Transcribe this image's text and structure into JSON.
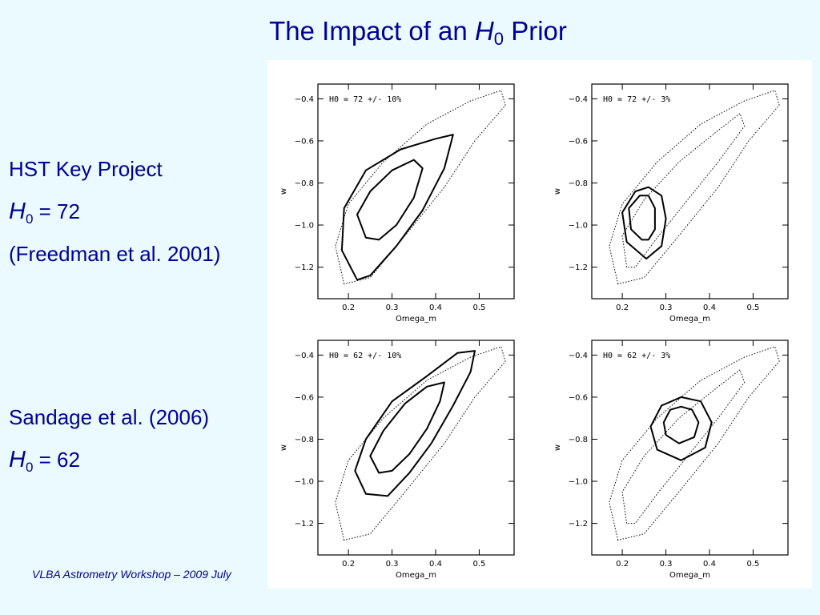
{
  "slide": {
    "title_prefix": "The Impact of an ",
    "title_var": "H",
    "title_sub": "0",
    "title_suffix": " Prior",
    "footer": "VLBA Astrometry Workshop – 2009 July"
  },
  "sidebar": {
    "block1": {
      "heading": "HST Key Project",
      "var": "H",
      "sub": "0",
      "value": " = 72",
      "citation": "(Freedman et al. 2001)"
    },
    "block2": {
      "heading": "Sandage et al. (2006)",
      "var": "H",
      "sub": "0",
      "value": " = 62"
    }
  },
  "chart_data": [
    {
      "type": "contour",
      "annotation": "H0 = 72 +/- 10%",
      "xlabel": "Omega_m",
      "ylabel": "w",
      "xlim": [
        0.13,
        0.58
      ],
      "ylim": [
        -1.35,
        -0.33
      ],
      "xticks": [
        "0.2",
        "0.3",
        "0.4",
        "0.5"
      ],
      "yticks": [
        "-0.4",
        "-0.6",
        "-0.8",
        "-1.0",
        "-1.2"
      ],
      "series": [
        {
          "style": "dotted",
          "points": [
            [
              0.19,
              -1.28
            ],
            [
              0.17,
              -1.1
            ],
            [
              0.2,
              -0.9
            ],
            [
              0.28,
              -0.7
            ],
            [
              0.38,
              -0.52
            ],
            [
              0.48,
              -0.41
            ],
            [
              0.55,
              -0.36
            ],
            [
              0.56,
              -0.43
            ],
            [
              0.49,
              -0.6
            ],
            [
              0.42,
              -0.82
            ],
            [
              0.33,
              -1.05
            ],
            [
              0.25,
              -1.25
            ],
            [
              0.19,
              -1.28
            ]
          ]
        },
        {
          "style": "solid",
          "points": [
            [
              0.22,
              -1.26
            ],
            [
              0.185,
              -1.12
            ],
            [
              0.19,
              -0.92
            ],
            [
              0.24,
              -0.74
            ],
            [
              0.32,
              -0.64
            ],
            [
              0.4,
              -0.59
            ],
            [
              0.44,
              -0.57
            ],
            [
              0.42,
              -0.73
            ],
            [
              0.37,
              -0.93
            ],
            [
              0.31,
              -1.1
            ],
            [
              0.25,
              -1.24
            ],
            [
              0.22,
              -1.26
            ]
          ]
        },
        {
          "style": "solid",
          "points": [
            [
              0.24,
              -1.06
            ],
            [
              0.22,
              -0.95
            ],
            [
              0.25,
              -0.84
            ],
            [
              0.3,
              -0.74
            ],
            [
              0.35,
              -0.69
            ],
            [
              0.37,
              -0.73
            ],
            [
              0.35,
              -0.87
            ],
            [
              0.31,
              -1.0
            ],
            [
              0.27,
              -1.07
            ],
            [
              0.24,
              -1.06
            ]
          ]
        }
      ]
    },
    {
      "type": "contour",
      "annotation": "H0 = 72 +/- 3%",
      "xlabel": "Omega_m",
      "ylabel": "w",
      "xlim": [
        0.13,
        0.58
      ],
      "ylim": [
        -1.35,
        -0.33
      ],
      "xticks": [
        "0.2",
        "0.3",
        "0.4",
        "0.5"
      ],
      "yticks": [
        "-0.4",
        "-0.6",
        "-0.8",
        "-1.0",
        "-1.2"
      ],
      "series": [
        {
          "style": "dotted",
          "points": [
            [
              0.19,
              -1.28
            ],
            [
              0.17,
              -1.1
            ],
            [
              0.2,
              -0.9
            ],
            [
              0.28,
              -0.7
            ],
            [
              0.38,
              -0.52
            ],
            [
              0.48,
              -0.41
            ],
            [
              0.55,
              -0.36
            ],
            [
              0.56,
              -0.43
            ],
            [
              0.49,
              -0.6
            ],
            [
              0.42,
              -0.82
            ],
            [
              0.33,
              -1.05
            ],
            [
              0.25,
              -1.25
            ],
            [
              0.19,
              -1.28
            ]
          ]
        },
        {
          "style": "dotted",
          "points": [
            [
              0.21,
              -1.2
            ],
            [
              0.2,
              -1.05
            ],
            [
              0.25,
              -0.88
            ],
            [
              0.33,
              -0.7
            ],
            [
              0.42,
              -0.55
            ],
            [
              0.47,
              -0.47
            ],
            [
              0.48,
              -0.53
            ],
            [
              0.42,
              -0.7
            ],
            [
              0.35,
              -0.88
            ],
            [
              0.28,
              -1.06
            ],
            [
              0.23,
              -1.2
            ],
            [
              0.21,
              -1.2
            ]
          ]
        },
        {
          "style": "solid",
          "points": [
            [
              0.255,
              -1.16
            ],
            [
              0.21,
              -1.08
            ],
            [
              0.2,
              -0.94
            ],
            [
              0.23,
              -0.84
            ],
            [
              0.26,
              -0.82
            ],
            [
              0.29,
              -0.86
            ],
            [
              0.3,
              -0.97
            ],
            [
              0.29,
              -1.1
            ],
            [
              0.255,
              -1.16
            ]
          ]
        },
        {
          "style": "solid",
          "points": [
            [
              0.245,
              -1.07
            ],
            [
              0.22,
              -1.02
            ],
            [
              0.215,
              -0.92
            ],
            [
              0.24,
              -0.86
            ],
            [
              0.26,
              -0.86
            ],
            [
              0.275,
              -0.92
            ],
            [
              0.275,
              -1.02
            ],
            [
              0.26,
              -1.07
            ],
            [
              0.245,
              -1.07
            ]
          ]
        }
      ]
    },
    {
      "type": "contour",
      "annotation": "H0 = 62 +/- 10%",
      "xlabel": "Omega_m",
      "ylabel": "w",
      "xlim": [
        0.13,
        0.58
      ],
      "ylim": [
        -1.35,
        -0.33
      ],
      "xticks": [
        "0.2",
        "0.3",
        "0.4",
        "0.5"
      ],
      "yticks": [
        "-0.4",
        "-0.6",
        "-0.8",
        "-1.0",
        "-1.2"
      ],
      "series": [
        {
          "style": "dotted",
          "points": [
            [
              0.19,
              -1.28
            ],
            [
              0.17,
              -1.1
            ],
            [
              0.2,
              -0.9
            ],
            [
              0.28,
              -0.7
            ],
            [
              0.38,
              -0.52
            ],
            [
              0.48,
              -0.41
            ],
            [
              0.55,
              -0.36
            ],
            [
              0.56,
              -0.43
            ],
            [
              0.49,
              -0.6
            ],
            [
              0.42,
              -0.82
            ],
            [
              0.33,
              -1.05
            ],
            [
              0.25,
              -1.25
            ],
            [
              0.19,
              -1.28
            ]
          ]
        },
        {
          "style": "solid",
          "points": [
            [
              0.24,
              -1.06
            ],
            [
              0.215,
              -0.95
            ],
            [
              0.24,
              -0.8
            ],
            [
              0.3,
              -0.62
            ],
            [
              0.38,
              -0.5
            ],
            [
              0.45,
              -0.39
            ],
            [
              0.49,
              -0.38
            ],
            [
              0.48,
              -0.48
            ],
            [
              0.44,
              -0.64
            ],
            [
              0.39,
              -0.82
            ],
            [
              0.34,
              -0.96
            ],
            [
              0.29,
              -1.07
            ],
            [
              0.24,
              -1.06
            ]
          ]
        },
        {
          "style": "solid",
          "points": [
            [
              0.27,
              -0.96
            ],
            [
              0.25,
              -0.88
            ],
            [
              0.28,
              -0.76
            ],
            [
              0.33,
              -0.63
            ],
            [
              0.38,
              -0.55
            ],
            [
              0.42,
              -0.53
            ],
            [
              0.41,
              -0.62
            ],
            [
              0.38,
              -0.75
            ],
            [
              0.34,
              -0.87
            ],
            [
              0.3,
              -0.95
            ],
            [
              0.27,
              -0.96
            ]
          ]
        }
      ]
    },
    {
      "type": "contour",
      "annotation": "H0 = 62 +/- 3%",
      "xlabel": "Omega_m",
      "ylabel": "w",
      "xlim": [
        0.13,
        0.58
      ],
      "ylim": [
        -1.35,
        -0.33
      ],
      "xticks": [
        "0.2",
        "0.3",
        "0.4",
        "0.5"
      ],
      "yticks": [
        "-0.4",
        "-0.6",
        "-0.8",
        "-1.0",
        "-1.2"
      ],
      "series": [
        {
          "style": "dotted",
          "points": [
            [
              0.19,
              -1.28
            ],
            [
              0.17,
              -1.1
            ],
            [
              0.2,
              -0.9
            ],
            [
              0.28,
              -0.7
            ],
            [
              0.38,
              -0.52
            ],
            [
              0.48,
              -0.41
            ],
            [
              0.55,
              -0.36
            ],
            [
              0.56,
              -0.43
            ],
            [
              0.49,
              -0.6
            ],
            [
              0.42,
              -0.82
            ],
            [
              0.33,
              -1.05
            ],
            [
              0.25,
              -1.25
            ],
            [
              0.19,
              -1.28
            ]
          ]
        },
        {
          "style": "dotted",
          "points": [
            [
              0.21,
              -1.2
            ],
            [
              0.2,
              -1.05
            ],
            [
              0.25,
              -0.88
            ],
            [
              0.33,
              -0.7
            ],
            [
              0.42,
              -0.55
            ],
            [
              0.47,
              -0.47
            ],
            [
              0.48,
              -0.53
            ],
            [
              0.42,
              -0.7
            ],
            [
              0.35,
              -0.88
            ],
            [
              0.28,
              -1.06
            ],
            [
              0.23,
              -1.2
            ],
            [
              0.21,
              -1.2
            ]
          ]
        },
        {
          "style": "solid",
          "points": [
            [
              0.335,
              -0.9
            ],
            [
              0.28,
              -0.85
            ],
            [
              0.265,
              -0.74
            ],
            [
              0.29,
              -0.64
            ],
            [
              0.335,
              -0.6
            ],
            [
              0.38,
              -0.62
            ],
            [
              0.405,
              -0.72
            ],
            [
              0.39,
              -0.84
            ],
            [
              0.335,
              -0.9
            ]
          ]
        },
        {
          "style": "solid",
          "points": [
            [
              0.33,
              -0.82
            ],
            [
              0.3,
              -0.78
            ],
            [
              0.295,
              -0.72
            ],
            [
              0.31,
              -0.66
            ],
            [
              0.335,
              -0.645
            ],
            [
              0.36,
              -0.66
            ],
            [
              0.375,
              -0.72
            ],
            [
              0.365,
              -0.79
            ],
            [
              0.33,
              -0.82
            ]
          ]
        }
      ]
    }
  ]
}
